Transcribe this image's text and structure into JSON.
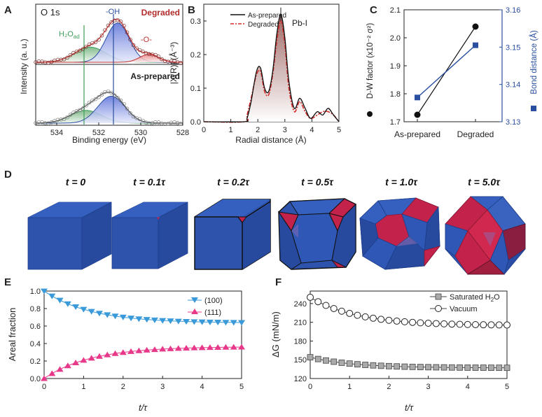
{
  "chart_data": [
    {
      "panel": "A",
      "type": "line",
      "title": "O 1s",
      "xlabel": "Binding energy (eV)",
      "ylabel": "Intensity (a. u.)",
      "xlim": [
        535,
        528
      ],
      "xticks": [
        "534",
        "532",
        "530",
        "528"
      ],
      "labels": {
        "oh": "-OH",
        "o": "-O-",
        "h2o": "H2Oad",
        "h2o_base": "H₂O",
        "h2o_sub": "ad",
        "degraded": "Degraded",
        "asprep": "As-prepared"
      },
      "reference_lines": {
        "h2o_ad": 532.7,
        "oh": 531.3
      },
      "degraded": {
        "peaks": [
          {
            "name": "H2Oad",
            "center": 532.4,
            "height": 0.3,
            "width": 0.75
          },
          {
            "name": "-OH",
            "center": 531.1,
            "height": 0.78,
            "width": 0.55
          },
          {
            "name": "-O-",
            "center": 529.6,
            "height": 0.16,
            "width": 0.45
          }
        ]
      },
      "as_prepared": {
        "peaks": [
          {
            "name": "H2Oad",
            "center": 532.6,
            "height": 0.26,
            "width": 0.75
          },
          {
            "name": "-OH",
            "center": 531.4,
            "height": 0.55,
            "width": 0.65
          }
        ]
      }
    },
    {
      "panel": "B",
      "type": "line",
      "xlabel": "Radial distance (Å)",
      "ylabel": "|X(R)| (Å⁻³)",
      "xlim": [
        0,
        5
      ],
      "ylim": [
        0,
        0.35
      ],
      "xticks": [
        "0",
        "1",
        "2",
        "3",
        "4",
        "5"
      ],
      "yticks": [
        "0.0",
        "0.1",
        "0.2",
        "0.3"
      ],
      "annotation": "Pb-I",
      "legend": [
        "As-prepared",
        "Degraded"
      ],
      "series": [
        {
          "name": "As-prepared",
          "x": [
            0,
            1.5,
            1.6,
            1.75,
            1.95,
            2.1,
            2.25,
            2.4,
            2.55,
            2.7,
            2.85,
            3.0,
            3.15,
            3.35,
            3.55,
            3.75,
            3.95,
            4.2,
            4.4,
            4.6,
            4.8,
            5.0
          ],
          "y": [
            0,
            0.0,
            0.01,
            0.06,
            0.15,
            0.16,
            0.1,
            0.09,
            0.15,
            0.26,
            0.32,
            0.25,
            0.12,
            0.04,
            0.07,
            0.04,
            0.01,
            0.03,
            0.02,
            0.04,
            0.02,
            0.0
          ]
        },
        {
          "name": "Degraded",
          "x": [
            0,
            1.5,
            1.6,
            1.75,
            1.95,
            2.1,
            2.25,
            2.4,
            2.55,
            2.7,
            2.85,
            3.0,
            3.15,
            3.35,
            3.55,
            3.75,
            3.95,
            4.2,
            4.4,
            4.6,
            4.8,
            5.0
          ],
          "y": [
            0,
            0.0,
            0.02,
            0.07,
            0.14,
            0.15,
            0.09,
            0.08,
            0.14,
            0.24,
            0.3,
            0.23,
            0.1,
            0.03,
            0.06,
            0.03,
            0.01,
            0.02,
            0.03,
            0.03,
            0.02,
            0.0
          ]
        }
      ]
    },
    {
      "panel": "C",
      "type": "line",
      "categories": [
        "As-prepared",
        "Degraded"
      ],
      "ylabel_left": "D-W factor (x10⁻² σ²)",
      "ylabel_right": "Bond distance (Å)",
      "ylim_left": [
        1.7,
        2.1
      ],
      "ylim_right": [
        3.13,
        3.16
      ],
      "yticks_left": [
        "1.7",
        "1.8",
        "1.9",
        "2.0",
        "2.1"
      ],
      "yticks_right": [
        "3.13",
        "3.14",
        "3.15",
        "3.16"
      ],
      "series": [
        {
          "name": "D-W factor",
          "values": [
            1.725,
            2.04
          ]
        },
        {
          "name": "Bond distance",
          "values": [
            3.1365,
            3.1505
          ]
        }
      ]
    },
    {
      "panel": "D",
      "type": "diagram",
      "labels": [
        "t = 0",
        "t = 0.1τ",
        "t = 0.2τ",
        "t = 0.5τ",
        "t = 1.0τ",
        "t = 5.0τ"
      ]
    },
    {
      "panel": "E",
      "type": "line",
      "xlabel": "t/τ",
      "ylabel": "Areal fraction",
      "xlim": [
        0,
        5
      ],
      "ylim": [
        0,
        1.0
      ],
      "xticks": [
        "0",
        "1",
        "2",
        "3",
        "4",
        "5"
      ],
      "yticks": [
        "0.0",
        "0.2",
        "0.4",
        "0.6",
        "0.8",
        "1.0"
      ],
      "series": [
        {
          "name": "(100)",
          "asymptote": 0.635,
          "start": 1.0,
          "rate": 0.85
        },
        {
          "name": "(111)",
          "asymptote": 0.365,
          "start": 0.0,
          "rate": 0.85
        }
      ]
    },
    {
      "panel": "F",
      "type": "line",
      "xlabel": "t/τ",
      "ylabel": "ΔG (mN/m)",
      "xlim": [
        0,
        5
      ],
      "ylim": [
        120,
        260
      ],
      "xticks": [
        "0",
        "1",
        "2",
        "3",
        "4",
        "5"
      ],
      "yticks": [
        "120",
        "150",
        "180",
        "210",
        "240"
      ],
      "series": [
        {
          "name": "Saturated H2O",
          "legend_base": "Saturated H",
          "legend_sub": "2",
          "legend_tail": "O",
          "asymptote": 137,
          "start": 154,
          "rate": 0.9
        },
        {
          "name": "Vacuum",
          "asymptote": 205,
          "start": 250,
          "rate": 0.85
        }
      ]
    }
  ],
  "panel_letters": [
    "A",
    "B",
    "C",
    "D",
    "E",
    "F"
  ],
  "colors": {
    "blue_face": "#2f56b0",
    "red_face": "#c3234a",
    "series_100": "#3a9ad9",
    "series_111": "#e8388a",
    "navy": "#2a4fa0",
    "green": "#3ea05a",
    "dark_red": "#c0302e"
  }
}
